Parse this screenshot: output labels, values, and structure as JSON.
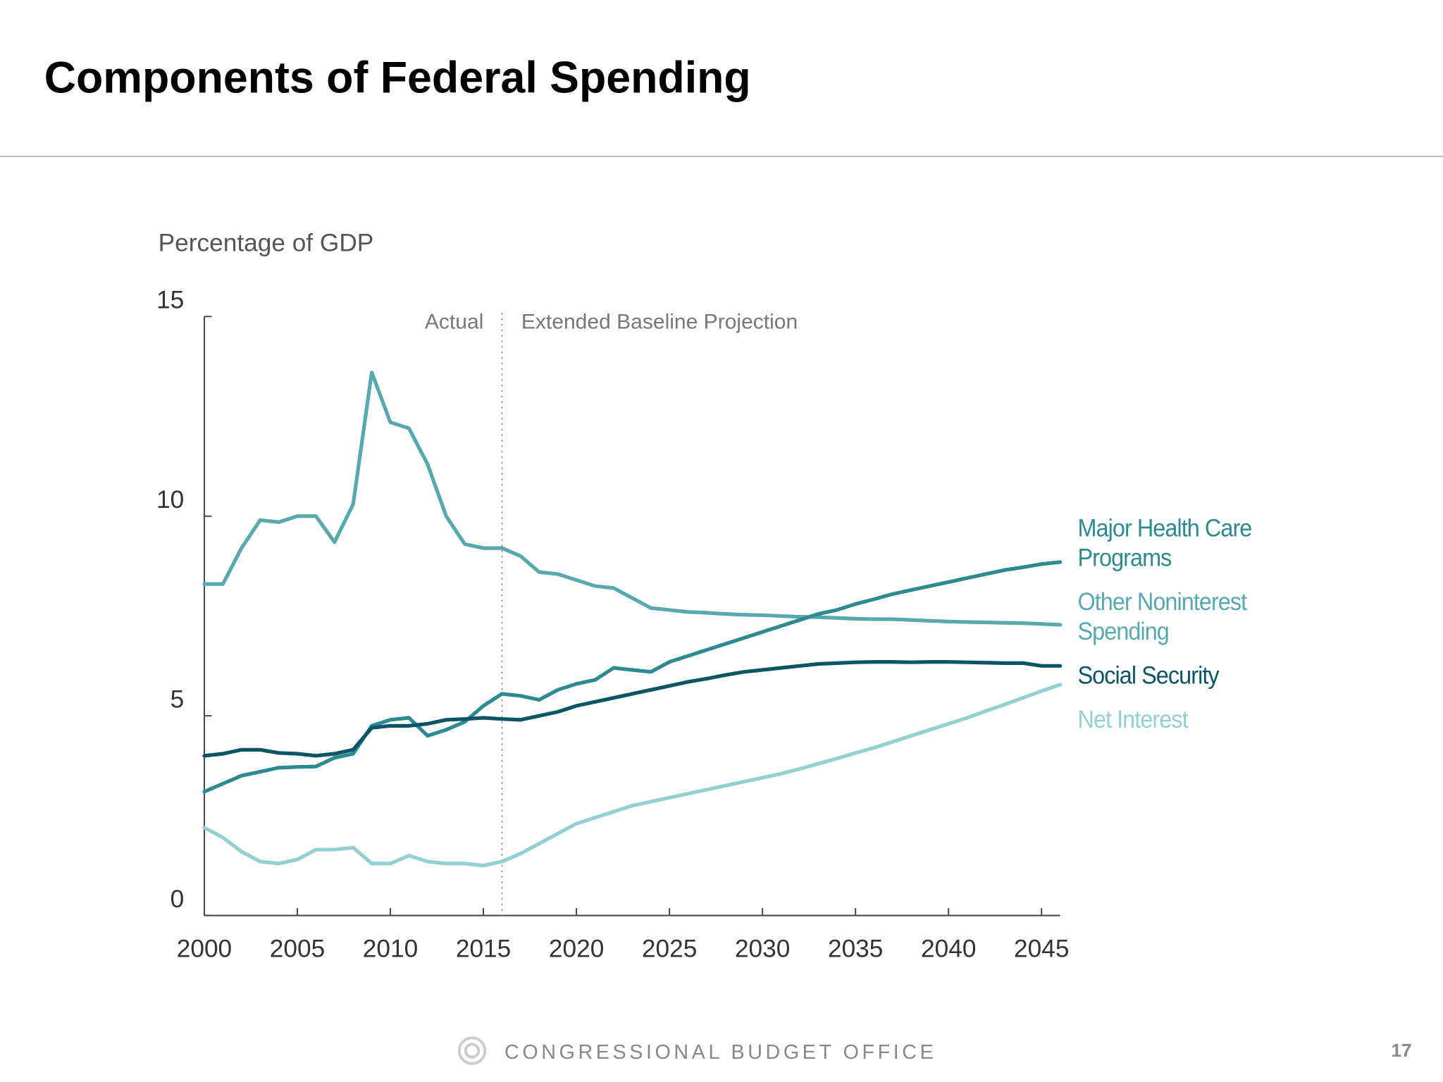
{
  "slide": {
    "title": "Components of Federal Spending",
    "footer": "CONGRESSIONAL BUDGET OFFICE",
    "page_number": "17"
  },
  "chart_data": {
    "type": "line",
    "y_label": "Percentage of GDP",
    "annotations": [
      "Actual",
      "Extended Baseline Projection"
    ],
    "divider_x": 2016,
    "x": [
      2000,
      2001,
      2002,
      2003,
      2004,
      2005,
      2006,
      2007,
      2008,
      2009,
      2010,
      2011,
      2012,
      2013,
      2014,
      2015,
      2016,
      2017,
      2018,
      2019,
      2020,
      2021,
      2022,
      2023,
      2024,
      2025,
      2026,
      2027,
      2028,
      2029,
      2030,
      2031,
      2032,
      2033,
      2034,
      2035,
      2036,
      2037,
      2038,
      2039,
      2040,
      2041,
      2042,
      2043,
      2044,
      2045,
      2046
    ],
    "xlim": [
      2000,
      2046
    ],
    "xticks": [
      2000,
      2005,
      2010,
      2015,
      2020,
      2025,
      2030,
      2035,
      2040,
      2045
    ],
    "ylim": [
      0,
      15
    ],
    "yticks": [
      0,
      5,
      10,
      15
    ],
    "series": [
      {
        "name": "Major Health Care Programs",
        "color": "#2e8a91",
        "values": [
          3.1,
          3.3,
          3.5,
          3.6,
          3.7,
          3.72,
          3.73,
          3.95,
          4.05,
          4.75,
          4.9,
          4.95,
          4.5,
          4.65,
          4.85,
          5.25,
          5.55,
          5.5,
          5.4,
          5.65,
          5.8,
          5.9,
          6.2,
          6.15,
          6.1,
          6.35,
          6.5,
          6.65,
          6.8,
          6.95,
          7.1,
          7.25,
          7.4,
          7.55,
          7.65,
          7.8,
          7.92,
          8.05,
          8.15,
          8.25,
          8.35,
          8.45,
          8.55,
          8.65,
          8.72,
          8.8,
          8.85
        ]
      },
      {
        "name": "Other Noninterest Spending",
        "color": "#58a9ad",
        "values": [
          8.3,
          8.3,
          9.2,
          9.9,
          9.85,
          10.0,
          10.0,
          9.35,
          10.3,
          13.6,
          12.35,
          12.2,
          11.3,
          10.0,
          9.3,
          9.2,
          9.2,
          9.0,
          8.6,
          8.55,
          8.4,
          8.25,
          8.2,
          7.95,
          7.7,
          7.65,
          7.6,
          7.58,
          7.55,
          7.53,
          7.52,
          7.5,
          7.48,
          7.47,
          7.45,
          7.43,
          7.42,
          7.42,
          7.4,
          7.38,
          7.36,
          7.35,
          7.34,
          7.33,
          7.32,
          7.3,
          7.28
        ]
      },
      {
        "name": "Social Security",
        "color": "#0d5566",
        "values": [
          4.0,
          4.05,
          4.15,
          4.15,
          4.07,
          4.05,
          4.0,
          4.05,
          4.15,
          4.7,
          4.75,
          4.75,
          4.8,
          4.9,
          4.92,
          4.95,
          4.92,
          4.9,
          5.0,
          5.1,
          5.25,
          5.35,
          5.45,
          5.55,
          5.65,
          5.75,
          5.85,
          5.93,
          6.02,
          6.1,
          6.15,
          6.2,
          6.25,
          6.3,
          6.32,
          6.34,
          6.35,
          6.35,
          6.34,
          6.35,
          6.35,
          6.34,
          6.33,
          6.32,
          6.32,
          6.25,
          6.25
        ]
      },
      {
        "name": "Net Interest",
        "color": "#94cfd2",
        "values": [
          2.2,
          1.95,
          1.6,
          1.35,
          1.3,
          1.4,
          1.65,
          1.65,
          1.7,
          1.3,
          1.3,
          1.5,
          1.35,
          1.3,
          1.3,
          1.25,
          1.35,
          1.55,
          1.8,
          2.05,
          2.3,
          2.45,
          2.6,
          2.75,
          2.85,
          2.95,
          3.05,
          3.15,
          3.25,
          3.35,
          3.45,
          3.55,
          3.67,
          3.8,
          3.93,
          4.07,
          4.2,
          4.35,
          4.5,
          4.65,
          4.8,
          4.95,
          5.12,
          5.28,
          5.45,
          5.62,
          5.78
        ]
      }
    ]
  }
}
